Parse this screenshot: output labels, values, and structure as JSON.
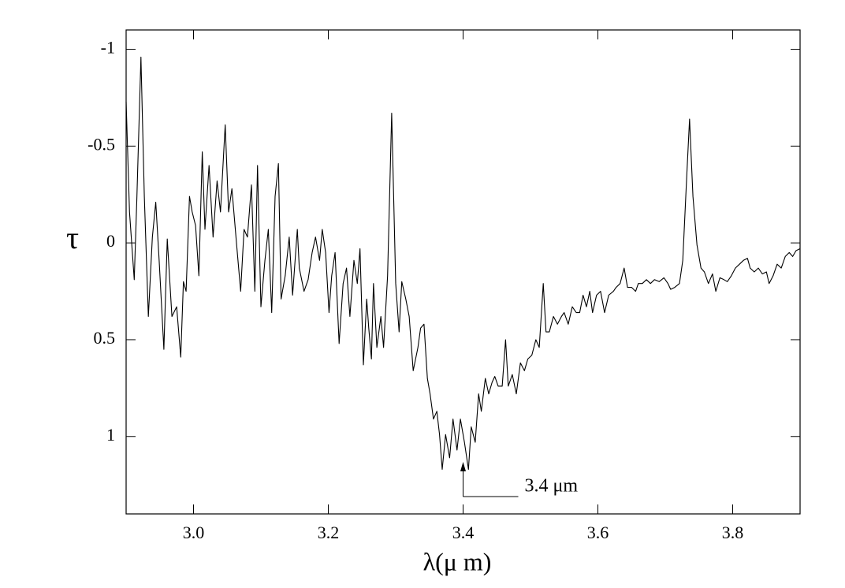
{
  "chart_data": {
    "type": "line",
    "xlabel": "λ(μ m)",
    "ylabel": "τ",
    "xlim": [
      2.9,
      3.9
    ],
    "ylim": [
      -1.1,
      1.4
    ],
    "y_inverted": true,
    "xticks": [
      {
        "value": 3,
        "label": "3.0"
      },
      3.2,
      3.4,
      3.6,
      3.8
    ],
    "yticks": [
      -1,
      -0.5,
      0,
      0.5,
      1
    ],
    "annotation": {
      "text": "3.4 μm",
      "x": 3.4
    },
    "series": [
      {
        "color": "#000000",
        "x": [
          2.9,
          2.905,
          2.912,
          2.916,
          2.922,
          2.927,
          2.933,
          2.939,
          2.944,
          2.949,
          2.956,
          2.961,
          2.968,
          2.975,
          2.981,
          2.985,
          2.989,
          2.994,
          2.998,
          3.003,
          3.008,
          3.013,
          3.017,
          3.023,
          3.029,
          3.035,
          3.04,
          3.047,
          3.052,
          3.057,
          3.064,
          3.07,
          3.075,
          3.08,
          3.086,
          3.091,
          3.095,
          3.1,
          3.106,
          3.111,
          3.116,
          3.121,
          3.126,
          3.13,
          3.136,
          3.142,
          3.147,
          3.154,
          3.157,
          3.164,
          3.17,
          3.176,
          3.181,
          3.187,
          3.191,
          3.196,
          3.201,
          3.205,
          3.21,
          3.216,
          3.222,
          3.227,
          3.232,
          3.238,
          3.243,
          3.247,
          3.252,
          3.257,
          3.26,
          3.264,
          3.267,
          3.272,
          3.278,
          3.282,
          3.288,
          3.294,
          3.3,
          3.305,
          3.309,
          3.315,
          3.32,
          3.326,
          3.333,
          3.337,
          3.342,
          3.347,
          3.351,
          3.356,
          3.361,
          3.365,
          3.369,
          3.374,
          3.38,
          3.385,
          3.391,
          3.396,
          3.402,
          3.408,
          3.412,
          3.418,
          3.423,
          3.427,
          3.433,
          3.438,
          3.443,
          3.447,
          3.452,
          3.458,
          3.463,
          3.467,
          3.473,
          3.479,
          3.485,
          3.491,
          3.496,
          3.502,
          3.508,
          3.513,
          3.519,
          3.523,
          3.528,
          3.534,
          3.54,
          3.546,
          3.55,
          3.556,
          3.562,
          3.568,
          3.573,
          3.578,
          3.583,
          3.588,
          3.592,
          3.598,
          3.604,
          3.61,
          3.616,
          3.623,
          3.627,
          3.633,
          3.639,
          3.644,
          3.65,
          3.656,
          3.66,
          3.666,
          3.672,
          3.678,
          3.684,
          3.691,
          3.698,
          3.704,
          3.708,
          3.714,
          3.721,
          3.726,
          3.732,
          3.736,
          3.741,
          3.747,
          3.753,
          3.758,
          3.764,
          3.77,
          3.775,
          3.781,
          3.787,
          3.792,
          3.798,
          3.804,
          3.81,
          3.816,
          3.822,
          3.826,
          3.832,
          3.838,
          3.844,
          3.85,
          3.854,
          3.86,
          3.866,
          3.872,
          3.878,
          3.884,
          3.889,
          3.894,
          3.9
        ],
        "values": [
          -0.73,
          -0.16,
          0.19,
          -0.24,
          -0.96,
          -0.24,
          0.38,
          -0.03,
          -0.21,
          0.09,
          0.55,
          -0.02,
          0.38,
          0.33,
          0.59,
          0.2,
          0.25,
          -0.24,
          -0.16,
          -0.09,
          0.17,
          -0.47,
          -0.07,
          -0.4,
          -0.03,
          -0.32,
          -0.16,
          -0.61,
          -0.16,
          -0.28,
          0.01,
          0.25,
          -0.07,
          -0.03,
          -0.3,
          0.25,
          -0.4,
          0.33,
          0.09,
          -0.07,
          0.36,
          -0.24,
          -0.41,
          0.29,
          0.17,
          -0.03,
          0.27,
          -0.07,
          0.13,
          0.25,
          0.19,
          0.05,
          -0.03,
          0.09,
          -0.07,
          0.05,
          0.36,
          0.17,
          0.05,
          0.52,
          0.21,
          0.13,
          0.38,
          0.09,
          0.21,
          0.03,
          0.63,
          0.29,
          0.44,
          0.6,
          0.21,
          0.54,
          0.38,
          0.54,
          0.17,
          -0.67,
          0.21,
          0.46,
          0.2,
          0.29,
          0.38,
          0.66,
          0.54,
          0.44,
          0.42,
          0.7,
          0.78,
          0.91,
          0.87,
          0.99,
          1.17,
          0.99,
          1.11,
          0.91,
          1.07,
          0.91,
          1.03,
          1.17,
          0.95,
          1.03,
          0.78,
          0.87,
          0.7,
          0.78,
          0.72,
          0.69,
          0.74,
          0.74,
          0.5,
          0.74,
          0.68,
          0.78,
          0.62,
          0.66,
          0.6,
          0.58,
          0.5,
          0.54,
          0.21,
          0.46,
          0.46,
          0.38,
          0.42,
          0.38,
          0.36,
          0.42,
          0.33,
          0.36,
          0.36,
          0.27,
          0.33,
          0.25,
          0.36,
          0.27,
          0.25,
          0.36,
          0.27,
          0.25,
          0.23,
          0.21,
          0.13,
          0.23,
          0.23,
          0.25,
          0.21,
          0.21,
          0.19,
          0.21,
          0.19,
          0.2,
          0.18,
          0.21,
          0.24,
          0.23,
          0.21,
          0.09,
          -0.36,
          -0.64,
          -0.24,
          0.01,
          0.13,
          0.15,
          0.21,
          0.16,
          0.25,
          0.18,
          0.19,
          0.2,
          0.17,
          0.13,
          0.11,
          0.09,
          0.08,
          0.13,
          0.15,
          0.13,
          0.16,
          0.15,
          0.21,
          0.17,
          0.11,
          0.13,
          0.07,
          0.05,
          0.07,
          0.04,
          0.03
        ]
      }
    ]
  }
}
